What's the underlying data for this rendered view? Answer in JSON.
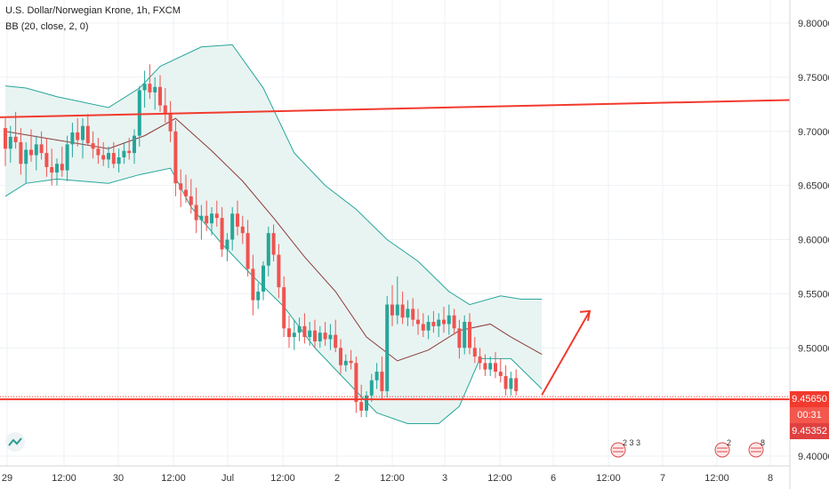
{
  "header": {
    "symbol_line": "U.S. Dollar/Norwegian Krone, 1h, FXCM",
    "indicator_line": "BB (20, close, 2, 0)"
  },
  "colors": {
    "up": "#26a69a",
    "down": "#ef5350",
    "band": "#26a69a",
    "band_fill": "#e8f4f2",
    "basis": "#8d3b3b",
    "trendline": "#f23a2e",
    "grid": "#eef1f4"
  },
  "price_scale": {
    "ticks": [
      "9.80000",
      "9.75000",
      "9.70000",
      "9.65000",
      "9.60000",
      "9.55000",
      "9.50000",
      "9.45000",
      "9.40000"
    ],
    "current_price": "9.45650",
    "countdown": "00:31",
    "last_close_label": "9.45352"
  },
  "time_scale": {
    "labels": [
      "29",
      "12:00",
      "30",
      "12:00",
      "Jul",
      "12:00",
      "2",
      "12:00",
      "3",
      "12:00",
      "6",
      "12:00",
      "7",
      "12:00",
      "8"
    ]
  },
  "events": {
    "labels": [
      "2 3 3",
      "2",
      "8"
    ],
    "icon": "us-flag-icon"
  },
  "chart_data": {
    "type": "candlestick",
    "symbol": "U.S. Dollar/Norwegian Krone",
    "interval": "1h",
    "ylim": [
      9.4,
      9.82
    ],
    "candles": [
      [
        9.703,
        9.712,
        9.668,
        9.684
      ],
      [
        9.684,
        9.705,
        9.671,
        9.695
      ],
      [
        9.695,
        9.718,
        9.684,
        9.69
      ],
      [
        9.69,
        9.703,
        9.66,
        9.67
      ],
      [
        9.67,
        9.69,
        9.652,
        9.683
      ],
      [
        9.683,
        9.702,
        9.672,
        9.678
      ],
      [
        9.678,
        9.696,
        9.664,
        9.688
      ],
      [
        9.688,
        9.7,
        9.674,
        9.68
      ],
      [
        9.68,
        9.694,
        9.658,
        9.667
      ],
      [
        9.667,
        9.684,
        9.65,
        9.662
      ],
      [
        9.662,
        9.675,
        9.65,
        9.67
      ],
      [
        9.67,
        9.686,
        9.658,
        9.664
      ],
      [
        9.664,
        9.696,
        9.654,
        9.688
      ],
      [
        9.688,
        9.708,
        9.676,
        9.699
      ],
      [
        9.699,
        9.712,
        9.686,
        9.692
      ],
      [
        9.692,
        9.712,
        9.675,
        9.705
      ],
      [
        9.705,
        9.716,
        9.687,
        9.689
      ],
      [
        9.689,
        9.7,
        9.675,
        9.684
      ],
      [
        9.684,
        9.694,
        9.67,
        9.678
      ],
      [
        9.678,
        9.69,
        9.668,
        9.674
      ],
      [
        9.674,
        9.686,
        9.666,
        9.68
      ],
      [
        9.68,
        9.69,
        9.666,
        9.67
      ],
      [
        9.67,
        9.684,
        9.662,
        9.676
      ],
      [
        9.676,
        9.69,
        9.67,
        9.682
      ],
      [
        9.682,
        9.694,
        9.674,
        9.68
      ],
      [
        9.68,
        9.702,
        9.67,
        9.696
      ],
      [
        9.696,
        9.742,
        9.686,
        9.738
      ],
      [
        9.738,
        9.756,
        9.722,
        9.744
      ],
      [
        9.744,
        9.762,
        9.73,
        9.736
      ],
      [
        9.736,
        9.75,
        9.72,
        9.741
      ],
      [
        9.741,
        9.752,
        9.718,
        9.724
      ],
      [
        9.724,
        9.74,
        9.708,
        9.716
      ],
      [
        9.716,
        9.728,
        9.69,
        9.7
      ],
      [
        9.7,
        9.71,
        9.64,
        9.652
      ],
      [
        9.652,
        9.665,
        9.63,
        9.646
      ],
      [
        9.646,
        9.66,
        9.634,
        9.64
      ],
      [
        9.64,
        9.656,
        9.624,
        9.632
      ],
      [
        9.632,
        9.648,
        9.606,
        9.618
      ],
      [
        9.618,
        9.632,
        9.6,
        9.622
      ],
      [
        9.622,
        9.636,
        9.608,
        9.615
      ],
      [
        9.615,
        9.63,
        9.604,
        9.624
      ],
      [
        9.624,
        9.636,
        9.612,
        9.62
      ],
      [
        9.62,
        9.63,
        9.584,
        9.591
      ],
      [
        9.591,
        9.606,
        9.58,
        9.6
      ],
      [
        9.6,
        9.63,
        9.59,
        9.624
      ],
      [
        9.624,
        9.636,
        9.604,
        9.612
      ],
      [
        9.612,
        9.622,
        9.596,
        9.606
      ],
      [
        9.606,
        9.618,
        9.566,
        9.573
      ],
      [
        9.573,
        9.586,
        9.53,
        9.544
      ],
      [
        9.544,
        9.56,
        9.536,
        9.552
      ],
      [
        9.552,
        9.58,
        9.544,
        9.576
      ],
      [
        9.576,
        9.612,
        9.566,
        9.606
      ],
      [
        9.606,
        9.614,
        9.58,
        9.586
      ],
      [
        9.586,
        9.596,
        9.546,
        9.556
      ],
      [
        9.556,
        9.566,
        9.51,
        9.518
      ],
      [
        9.518,
        9.53,
        9.5,
        9.51
      ],
      [
        9.51,
        9.526,
        9.498,
        9.514
      ],
      [
        9.514,
        9.528,
        9.506,
        9.52
      ],
      [
        9.52,
        9.532,
        9.504,
        9.51
      ],
      [
        9.51,
        9.524,
        9.502,
        9.516
      ],
      [
        9.516,
        9.526,
        9.5,
        9.506
      ],
      [
        9.506,
        9.52,
        9.5,
        9.514
      ],
      [
        9.514,
        9.524,
        9.502,
        9.508
      ],
      [
        9.508,
        9.522,
        9.498,
        9.512
      ],
      [
        9.512,
        9.526,
        9.496,
        9.5
      ],
      [
        9.5,
        9.508,
        9.476,
        9.484
      ],
      [
        9.484,
        9.494,
        9.478,
        9.488
      ],
      [
        9.488,
        9.498,
        9.48,
        9.486
      ],
      [
        9.486,
        9.492,
        9.44,
        9.45
      ],
      [
        9.45,
        9.466,
        9.436,
        9.442
      ],
      [
        9.442,
        9.46,
        9.436,
        9.456
      ],
      [
        9.456,
        9.476,
        9.45,
        9.47
      ],
      [
        9.47,
        9.486,
        9.462,
        9.478
      ],
      [
        9.478,
        9.492,
        9.452,
        9.46
      ],
      [
        9.46,
        9.548,
        9.454,
        9.54
      ],
      [
        9.54,
        9.558,
        9.52,
        9.53
      ],
      [
        9.53,
        9.566,
        9.522,
        9.54
      ],
      [
        9.54,
        9.552,
        9.522,
        9.528
      ],
      [
        9.528,
        9.544,
        9.52,
        9.536
      ],
      [
        9.536,
        9.546,
        9.52,
        9.526
      ],
      [
        9.526,
        9.536,
        9.512,
        9.522
      ],
      [
        9.522,
        9.532,
        9.51,
        9.516
      ],
      [
        9.516,
        9.53,
        9.508,
        9.524
      ],
      [
        9.524,
        9.534,
        9.514,
        9.52
      ],
      [
        9.52,
        9.532,
        9.51,
        9.526
      ],
      [
        9.526,
        9.538,
        9.514,
        9.522
      ],
      [
        9.522,
        9.54,
        9.512,
        9.53
      ],
      [
        9.53,
        9.536,
        9.512,
        9.518
      ],
      [
        9.518,
        9.526,
        9.49,
        9.5
      ],
      [
        9.5,
        9.53,
        9.494,
        9.524
      ],
      [
        9.524,
        9.532,
        9.494,
        9.5
      ],
      [
        9.5,
        9.51,
        9.486,
        9.492
      ],
      [
        9.492,
        9.5,
        9.48,
        9.486
      ],
      [
        9.486,
        9.494,
        9.474,
        9.48
      ],
      [
        9.48,
        9.492,
        9.474,
        9.486
      ],
      [
        9.486,
        9.496,
        9.472,
        9.478
      ],
      [
        9.478,
        9.49,
        9.468,
        9.474
      ],
      [
        9.474,
        9.484,
        9.456,
        9.462
      ],
      [
        9.462,
        9.478,
        9.456,
        9.472
      ],
      [
        9.472,
        9.48,
        9.456,
        9.46
      ]
    ],
    "bollinger": {
      "period": 20,
      "source": "close",
      "stddev": 2,
      "offset": 0,
      "upper": [
        [
          0,
          9.742
        ],
        [
          4,
          9.74
        ],
        [
          10,
          9.732
        ],
        [
          20,
          9.722
        ],
        [
          26,
          9.74
        ],
        [
          30,
          9.76
        ],
        [
          38,
          9.778
        ],
        [
          44,
          9.78
        ],
        [
          50,
          9.74
        ],
        [
          56,
          9.68
        ],
        [
          62,
          9.65
        ],
        [
          68,
          9.628
        ],
        [
          74,
          9.6
        ],
        [
          80,
          9.58
        ],
        [
          86,
          9.552
        ],
        [
          90,
          9.54
        ],
        [
          96,
          9.548
        ],
        [
          100,
          9.545
        ],
        [
          104,
          9.545
        ]
      ],
      "basis": [
        [
          0,
          9.7
        ],
        [
          10,
          9.692
        ],
        [
          20,
          9.684
        ],
        [
          27,
          9.696
        ],
        [
          33,
          9.712
        ],
        [
          40,
          9.682
        ],
        [
          46,
          9.654
        ],
        [
          52,
          9.62
        ],
        [
          58,
          9.584
        ],
        [
          64,
          9.552
        ],
        [
          70,
          9.51
        ],
        [
          76,
          9.488
        ],
        [
          82,
          9.498
        ],
        [
          88,
          9.516
        ],
        [
          94,
          9.522
        ],
        [
          98,
          9.51
        ],
        [
          104,
          9.494
        ]
      ],
      "lower": [
        [
          0,
          9.64
        ],
        [
          4,
          9.652
        ],
        [
          10,
          9.656
        ],
        [
          20,
          9.652
        ],
        [
          26,
          9.66
        ],
        [
          32,
          9.666
        ],
        [
          36,
          9.63
        ],
        [
          42,
          9.596
        ],
        [
          48,
          9.566
        ],
        [
          54,
          9.538
        ],
        [
          60,
          9.5
        ],
        [
          66,
          9.47
        ],
        [
          72,
          9.44
        ],
        [
          78,
          9.43
        ],
        [
          84,
          9.43
        ],
        [
          88,
          9.446
        ],
        [
          92,
          9.49
        ],
        [
          98,
          9.49
        ],
        [
          104,
          9.462
        ]
      ]
    },
    "drawings": {
      "trendline": [
        [
          0,
          9.713
        ],
        [
          104,
          9.728
        ]
      ],
      "horizontal_support": 9.4525,
      "arrow": [
        [
          104,
          9.4565
        ],
        [
          114,
          9.534
        ]
      ]
    }
  }
}
